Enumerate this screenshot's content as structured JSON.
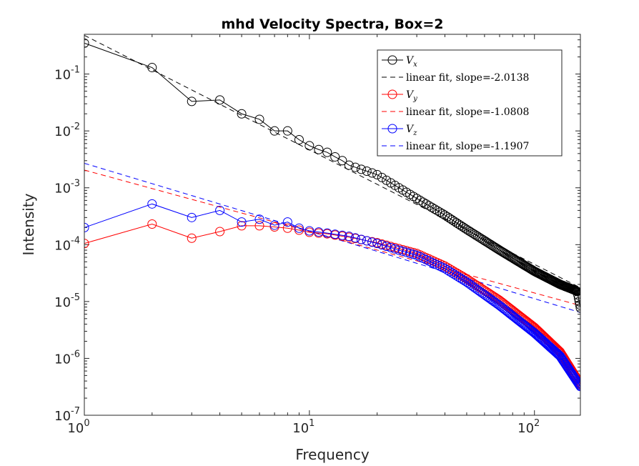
{
  "chart_data": {
    "type": "scatter",
    "title": "mhd Velocity Spectra, Box=2",
    "xlabel": "Frequency",
    "ylabel": "Intensity",
    "xscale": "log",
    "yscale": "log",
    "xlim": [
      1,
      160
    ],
    "ylim": [
      1e-07,
      0.5
    ],
    "x_ticks": [
      {
        "base": "10",
        "exp": "0",
        "value": 1
      },
      {
        "base": "10",
        "exp": "1",
        "value": 10
      },
      {
        "base": "10",
        "exp": "2",
        "value": 100
      }
    ],
    "y_ticks": [
      {
        "base": "10",
        "exp": "-7",
        "value": 1e-07
      },
      {
        "base": "10",
        "exp": "-6",
        "value": 1e-06
      },
      {
        "base": "10",
        "exp": "-5",
        "value": 1e-05
      },
      {
        "base": "10",
        "exp": "-4",
        "value": 0.0001
      },
      {
        "base": "10",
        "exp": "-3",
        "value": 0.001
      },
      {
        "base": "10",
        "exp": "-2",
        "value": 0.01
      },
      {
        "base": "10",
        "exp": "-1",
        "value": 0.1
      }
    ],
    "legend_position": "top-right",
    "series": [
      {
        "name": "V",
        "subscript": "x",
        "color": "#000000",
        "marker": "circle",
        "anchors": [
          [
            1,
            0.35
          ],
          [
            2,
            0.13
          ],
          [
            3,
            0.033
          ],
          [
            4,
            0.035
          ],
          [
            5,
            0.02
          ],
          [
            6,
            0.016
          ],
          [
            7,
            0.01
          ],
          [
            8,
            0.01
          ],
          [
            9,
            0.007
          ],
          [
            10,
            0.0055
          ],
          [
            11,
            0.0047
          ],
          [
            12,
            0.0042
          ],
          [
            13,
            0.0035
          ],
          [
            14,
            0.003
          ],
          [
            15,
            0.0025
          ],
          [
            20,
            0.0017
          ],
          [
            30,
            0.00065
          ],
          [
            40,
            0.00033
          ],
          [
            50,
            0.000185
          ],
          [
            70,
            8e-05
          ],
          [
            100,
            3.4e-05
          ],
          [
            130,
            2e-05
          ],
          [
            150,
            1.6e-05
          ],
          [
            155,
            1.5e-05
          ],
          [
            160,
            7.7e-06
          ]
        ],
        "fit": {
          "label": "linear fit, slope=-2.0138",
          "slope": -2.0138,
          "intercept": 0.48
        }
      },
      {
        "name": "V",
        "subscript": "y",
        "color": "#ff0000",
        "marker": "circle",
        "anchors": [
          [
            1,
            0.000105
          ],
          [
            2,
            0.00023
          ],
          [
            3,
            0.00013
          ],
          [
            4,
            0.00017
          ],
          [
            5,
            0.000215
          ],
          [
            6,
            0.000215
          ],
          [
            7,
            0.000205
          ],
          [
            8,
            0.000195
          ],
          [
            9,
            0.00018
          ],
          [
            10,
            0.000165
          ],
          [
            12,
            0.000155
          ],
          [
            15,
            0.000135
          ],
          [
            20,
            0.000108
          ],
          [
            25,
            8.5e-05
          ],
          [
            30,
            7e-05
          ],
          [
            40,
            4.2e-05
          ],
          [
            50,
            2.5e-05
          ],
          [
            70,
            1.05e-05
          ],
          [
            100,
            3.5e-06
          ],
          [
            130,
            1.3e-06
          ],
          [
            160,
            3.5e-07
          ]
        ],
        "fit": {
          "label": "linear fit, slope=-1.0808",
          "slope": -1.0808,
          "intercept": 0.00205
        }
      },
      {
        "name": "V",
        "subscript": "z",
        "color": "#0000ff",
        "marker": "circle",
        "anchors": [
          [
            1,
            0.0002
          ],
          [
            2,
            0.00052
          ],
          [
            3,
            0.0003
          ],
          [
            4,
            0.0004
          ],
          [
            5,
            0.00025
          ],
          [
            6,
            0.00028
          ],
          [
            7,
            0.00022
          ],
          [
            8,
            0.00025
          ],
          [
            9,
            0.000195
          ],
          [
            10,
            0.000175
          ],
          [
            12,
            0.00016
          ],
          [
            15,
            0.00014
          ],
          [
            20,
            0.000105
          ],
          [
            25,
            8e-05
          ],
          [
            30,
            6.5e-05
          ],
          [
            40,
            3.8e-05
          ],
          [
            50,
            2.2e-05
          ],
          [
            70,
            8.5e-06
          ],
          [
            100,
            2.8e-06
          ],
          [
            130,
            1.1e-06
          ],
          [
            160,
            3.2e-07
          ]
        ],
        "fit": {
          "label": "linear fit, slope=-1.1907",
          "slope": -1.1907,
          "intercept": 0.0027
        }
      }
    ]
  }
}
